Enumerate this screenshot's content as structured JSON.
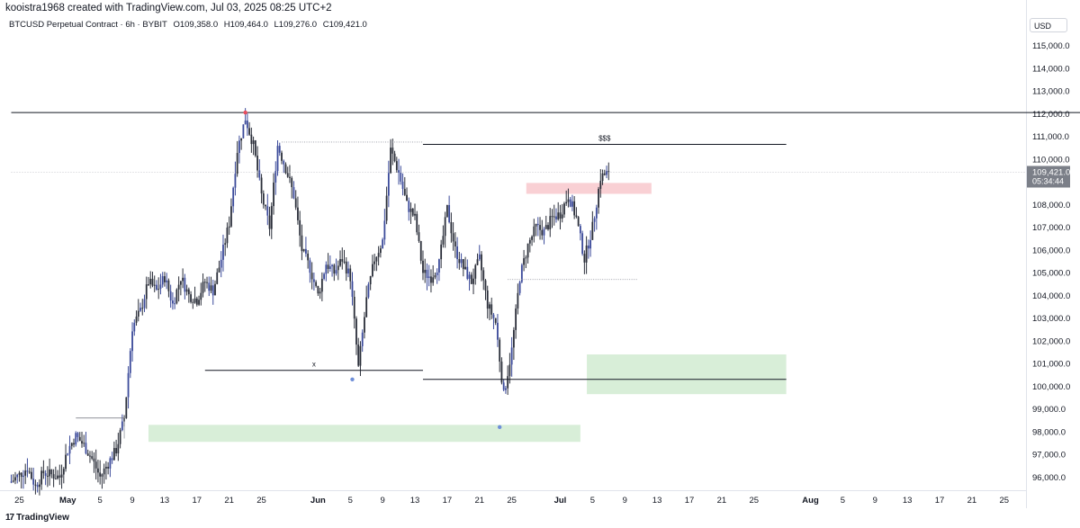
{
  "header": {
    "created_by": "kooistra1968 created with TradingView.com, Jul 03, 2025 08:25 UTC+2",
    "symbol": "BTCUSD Perpetual Contract · 6h · BYBIT",
    "ohlc": {
      "open": "O109,358.0",
      "high": "H109,464.0",
      "low": "L109,276.0",
      "close": "C109,421.0"
    },
    "currency": "USD"
  },
  "footer": {
    "brand": "TradingView",
    "logo_text": "17"
  },
  "colors": {
    "candle": "#2a2e39",
    "candle_accent": "#3b4a9a",
    "supply_zone": "#f8c8cc",
    "demand_zone": "#d4ecd4",
    "level_line": "#131722",
    "price_label_bg": "#7b7f88",
    "pivot_marker": "#6f8fd8",
    "top_marker": "#e84e5e"
  },
  "chart_data": {
    "type": "candlestick",
    "interval": "6h",
    "ylim": [
      95500,
      115500
    ],
    "ytick_labels": [
      "96,000.0",
      "97,000.0",
      "98,000.0",
      "99,000.0",
      "100,000.0",
      "101,000.0",
      "102,000.0",
      "103,000.0",
      "104,000.0",
      "105,000.0",
      "106,000.0",
      "107,000.0",
      "108,000.0",
      "109,000.0",
      "110,000.0",
      "111,000.0",
      "112,000.0",
      "113,000.0",
      "114,000.0",
      "115,000.0"
    ],
    "yticks": [
      96000,
      97000,
      98000,
      99000,
      100000,
      101000,
      102000,
      103000,
      104000,
      105000,
      106000,
      107000,
      108000,
      109000,
      110000,
      111000,
      112000,
      113000,
      114000,
      115000
    ],
    "x_axis": {
      "start_date": "Apr 24",
      "labels": [
        {
          "label": "25",
          "day": 1,
          "bold": false
        },
        {
          "label": "May",
          "day": 7,
          "bold": true
        },
        {
          "label": "5",
          "day": 11,
          "bold": false
        },
        {
          "label": "9",
          "day": 15,
          "bold": false
        },
        {
          "label": "13",
          "day": 19,
          "bold": false
        },
        {
          "label": "17",
          "day": 23,
          "bold": false
        },
        {
          "label": "21",
          "day": 27,
          "bold": false
        },
        {
          "label": "25",
          "day": 31,
          "bold": false
        },
        {
          "label": "Jun",
          "day": 38,
          "bold": true
        },
        {
          "label": "5",
          "day": 42,
          "bold": false
        },
        {
          "label": "9",
          "day": 46,
          "bold": false
        },
        {
          "label": "13",
          "day": 50,
          "bold": false
        },
        {
          "label": "17",
          "day": 54,
          "bold": false
        },
        {
          "label": "21",
          "day": 58,
          "bold": false
        },
        {
          "label": "25",
          "day": 62,
          "bold": false
        },
        {
          "label": "Jul",
          "day": 68,
          "bold": true
        },
        {
          "label": "5",
          "day": 72,
          "bold": false
        },
        {
          "label": "9",
          "day": 76,
          "bold": false
        },
        {
          "label": "13",
          "day": 80,
          "bold": false
        },
        {
          "label": "17",
          "day": 84,
          "bold": false
        },
        {
          "label": "21",
          "day": 88,
          "bold": false
        },
        {
          "label": "25",
          "day": 92,
          "bold": false
        },
        {
          "label": "Aug",
          "day": 99,
          "bold": true
        },
        {
          "label": "5",
          "day": 103,
          "bold": false
        },
        {
          "label": "9",
          "day": 107,
          "bold": false
        },
        {
          "label": "13",
          "day": 111,
          "bold": false
        },
        {
          "label": "17",
          "day": 115,
          "bold": false
        },
        {
          "label": "21",
          "day": 119,
          "bold": false
        },
        {
          "label": "25",
          "day": 123,
          "bold": false
        }
      ]
    },
    "price_path": [
      [
        0,
        95800
      ],
      [
        2,
        96400
      ],
      [
        3,
        95600
      ],
      [
        4,
        96200
      ],
      [
        6,
        96000
      ],
      [
        7,
        97200
      ],
      [
        8,
        97800
      ],
      [
        9,
        97400
      ],
      [
        10,
        96800
      ],
      [
        11,
        96000
      ],
      [
        12,
        96600
      ],
      [
        13,
        97200
      ],
      [
        14,
        98600
      ],
      [
        15,
        102600
      ],
      [
        16,
        103300
      ],
      [
        17,
        104600
      ],
      [
        18,
        104200
      ],
      [
        19,
        104800
      ],
      [
        20,
        103600
      ],
      [
        21,
        104800
      ],
      [
        22,
        104000
      ],
      [
        23,
        103800
      ],
      [
        24,
        104600
      ],
      [
        25,
        104200
      ],
      [
        26,
        105600
      ],
      [
        27,
        107200
      ],
      [
        28,
        110400
      ],
      [
        29,
        111800
      ],
      [
        30,
        110600
      ],
      [
        31,
        108400
      ],
      [
        32,
        107000
      ],
      [
        33,
        110600
      ],
      [
        34,
        109600
      ],
      [
        35,
        108400
      ],
      [
        36,
        106000
      ],
      [
        37,
        105200
      ],
      [
        38,
        104000
      ],
      [
        39,
        105400
      ],
      [
        40,
        105000
      ],
      [
        41,
        105600
      ],
      [
        42,
        104800
      ],
      [
        43,
        100800
      ],
      [
        44,
        103800
      ],
      [
        45,
        105600
      ],
      [
        46,
        106400
      ],
      [
        47,
        110400
      ],
      [
        48,
        109400
      ],
      [
        49,
        108000
      ],
      [
        50,
        107400
      ],
      [
        51,
        105000
      ],
      [
        52,
        104800
      ],
      [
        53,
        105400
      ],
      [
        54,
        107800
      ],
      [
        55,
        106000
      ],
      [
        56,
        105200
      ],
      [
        57,
        104600
      ],
      [
        58,
        105600
      ],
      [
        59,
        103600
      ],
      [
        60,
        102800
      ],
      [
        61,
        99600
      ],
      [
        62,
        101600
      ],
      [
        63,
        104800
      ],
      [
        64,
        106200
      ],
      [
        65,
        107000
      ],
      [
        66,
        106800
      ],
      [
        67,
        107400
      ],
      [
        68,
        107600
      ],
      [
        69,
        108400
      ],
      [
        70,
        107400
      ],
      [
        71,
        105600
      ],
      [
        72,
        107000
      ],
      [
        73,
        109200
      ],
      [
        74,
        109421
      ]
    ],
    "last_price": "109,421.0",
    "countdown": "05:34:44",
    "levels": [
      {
        "name": "range-high-line",
        "price": 112050,
        "from_day": 0,
        "to_day": 136
      },
      {
        "name": "sss-liquidity-line",
        "price": 110650,
        "from_day": 51,
        "to_day": 96,
        "label": "$$$"
      },
      {
        "name": "x-swing-line",
        "price": 100700,
        "from_day": 24,
        "to_day": 51,
        "label": "x"
      },
      {
        "name": "jun-low-line",
        "price": 100300,
        "from_day": 51,
        "to_day": 96
      }
    ],
    "zones": [
      {
        "name": "supply-zone",
        "type": "supply",
        "from_day": 63.8,
        "to_day": 79.3,
        "low": 108470,
        "high": 108950
      },
      {
        "name": "demand-zone-upper",
        "type": "demand",
        "from_day": 71.3,
        "to_day": 96,
        "low": 99650,
        "high": 101400
      },
      {
        "name": "demand-zone-lower",
        "type": "demand",
        "from_day": 17,
        "to_day": 70.5,
        "low": 97550,
        "high": 98300
      }
    ]
  }
}
